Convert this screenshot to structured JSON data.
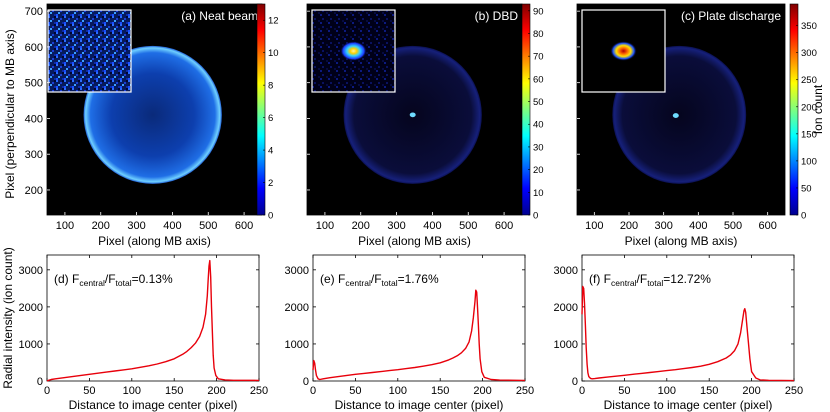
{
  "figure": {
    "top_row_ylabel": "Pixel (perpendicular to MB axis)",
    "bottom_row_ylabel": "Radial intensity (ion count)",
    "colorbar_label": "Ion count"
  },
  "chart_data": [
    {
      "type": "heatmap",
      "panel": "a",
      "title": "(a) Neat beam",
      "xlabel": "Pixel (along MB axis)",
      "ylabel": "Pixel (perpendicular to MB axis)",
      "xlim": [
        50,
        650
      ],
      "ylim": [
        130,
        720
      ],
      "xticks": [
        100,
        200,
        300,
        400,
        500,
        600
      ],
      "yticks": [
        200,
        300,
        400,
        500,
        600,
        700
      ],
      "colorbar": {
        "min": 0,
        "max": 13,
        "ticks": [
          0,
          2,
          4,
          6,
          8,
          10,
          12
        ]
      },
      "ring": {
        "center_x": 345,
        "center_y": 410,
        "radius": 193
      },
      "central_spot": {
        "x": 345,
        "y": 410,
        "peak_count": 0
      },
      "inset": "zoom of image center"
    },
    {
      "type": "heatmap",
      "panel": "b",
      "title": "(b) DBD",
      "xlabel": "Pixel (along MB axis)",
      "xlim": [
        50,
        650
      ],
      "ylim": [
        130,
        720
      ],
      "xticks": [
        100,
        200,
        300,
        400,
        500,
        600
      ],
      "yticks": [
        200,
        300,
        400,
        500,
        600,
        700
      ],
      "colorbar": {
        "min": 0,
        "max": 93,
        "ticks": [
          0,
          10,
          20,
          30,
          40,
          50,
          60,
          70,
          80,
          90
        ]
      },
      "ring": {
        "center_x": 345,
        "center_y": 410,
        "radius": 193
      },
      "central_spot": {
        "x": 345,
        "y": 410,
        "peak_count": 90
      },
      "inset": "zoom of image center"
    },
    {
      "type": "heatmap",
      "panel": "c",
      "title": "(c) Plate discharge",
      "xlabel": "Pixel (along MB axis)",
      "xlim": [
        50,
        650
      ],
      "ylim": [
        130,
        720
      ],
      "xticks": [
        100,
        200,
        300,
        400,
        500,
        600
      ],
      "yticks": [
        200,
        300,
        400,
        500,
        600,
        700
      ],
      "colorbar": {
        "min": 0,
        "max": 390,
        "ticks": [
          0,
          50,
          100,
          150,
          200,
          250,
          300,
          350
        ],
        "label": "Ion count"
      },
      "ring": {
        "center_x": 345,
        "center_y": 410,
        "radius": 193
      },
      "central_spot": {
        "x": 335,
        "y": 408,
        "peak_count": 380
      },
      "inset": "zoom of image center"
    },
    {
      "type": "line",
      "panel": "d",
      "title_parts": [
        "(d) F",
        "central",
        "/F",
        "total",
        "=0.13%"
      ],
      "xlabel": "Distance to image center (pixel)",
      "ylabel": "Radial intensity (ion count)",
      "xlim": [
        0,
        250
      ],
      "ylim": [
        0,
        3400
      ],
      "xticks": [
        0,
        50,
        100,
        150,
        200,
        250
      ],
      "yticks": [
        0,
        1000,
        2000,
        3000
      ],
      "series": [
        {
          "name": "radial intensity",
          "color": "#e8000b",
          "x": [
            0,
            2,
            5,
            10,
            20,
            30,
            40,
            50,
            60,
            70,
            80,
            90,
            100,
            110,
            120,
            130,
            140,
            150,
            160,
            165,
            170,
            175,
            180,
            184,
            187,
            189,
            190,
            191,
            192,
            193,
            194,
            195,
            196,
            197,
            199,
            202,
            210,
            220,
            250
          ],
          "y": [
            0,
            20,
            40,
            60,
            90,
            120,
            150,
            180,
            210,
            240,
            270,
            300,
            330,
            370,
            410,
            460,
            520,
            600,
            720,
            800,
            900,
            1020,
            1200,
            1450,
            1800,
            2300,
            2700,
            3100,
            3250,
            2800,
            2000,
            1300,
            700,
            350,
            150,
            60,
            30,
            20,
            15
          ]
        }
      ]
    },
    {
      "type": "line",
      "panel": "e",
      "title_parts": [
        "(e) F",
        "central",
        "/F",
        "total",
        "=1.76%"
      ],
      "xlabel": "Distance to image center (pixel)",
      "xlim": [
        0,
        250
      ],
      "ylim": [
        0,
        3400
      ],
      "xticks": [
        0,
        50,
        100,
        150,
        200,
        250
      ],
      "yticks": [
        0,
        1000,
        2000,
        3000
      ],
      "series": [
        {
          "name": "radial intensity",
          "color": "#e8000b",
          "x": [
            0,
            1,
            2,
            3,
            4,
            6,
            8,
            12,
            20,
            30,
            40,
            50,
            60,
            70,
            80,
            90,
            100,
            110,
            120,
            130,
            140,
            150,
            160,
            165,
            170,
            175,
            180,
            184,
            187,
            189,
            191,
            192,
            193,
            194,
            195,
            196,
            197,
            199,
            202,
            210,
            220,
            250
          ],
          "y": [
            300,
            550,
            480,
            300,
            150,
            60,
            40,
            60,
            90,
            120,
            150,
            180,
            205,
            230,
            255,
            280,
            305,
            335,
            365,
            400,
            440,
            490,
            570,
            620,
            680,
            760,
            880,
            1050,
            1350,
            1700,
            2150,
            2450,
            2400,
            2000,
            1500,
            1000,
            600,
            250,
            100,
            40,
            25,
            15
          ]
        }
      ]
    },
    {
      "type": "line",
      "panel": "f",
      "title_parts": [
        "(f) F",
        "central",
        "/F",
        "total",
        "=12.72%"
      ],
      "xlabel": "Distance to image center (pixel)",
      "xlim": [
        0,
        250
      ],
      "ylim": [
        0,
        3400
      ],
      "xticks": [
        0,
        50,
        100,
        150,
        200,
        250
      ],
      "yticks": [
        0,
        1000,
        2000,
        3000
      ],
      "series": [
        {
          "name": "radial intensity",
          "color": "#e8000b",
          "x": [
            0,
            1,
            2,
            3,
            4,
            5,
            6,
            7,
            8,
            10,
            12,
            15,
            20,
            30,
            40,
            50,
            60,
            70,
            80,
            90,
            100,
            110,
            120,
            130,
            140,
            150,
            160,
            170,
            175,
            180,
            184,
            187,
            189,
            191,
            192,
            193,
            194,
            196,
            198,
            200,
            205,
            210,
            220,
            250
          ],
          "y": [
            1800,
            2550,
            2500,
            2100,
            1500,
            900,
            450,
            220,
            120,
            70,
            60,
            65,
            80,
            105,
            130,
            155,
            180,
            205,
            230,
            255,
            280,
            305,
            335,
            365,
            400,
            450,
            520,
            620,
            700,
            820,
            1000,
            1300,
            1600,
            1900,
            1950,
            1850,
            1600,
            1100,
            600,
            250,
            80,
            30,
            20,
            10
          ]
        }
      ]
    }
  ]
}
